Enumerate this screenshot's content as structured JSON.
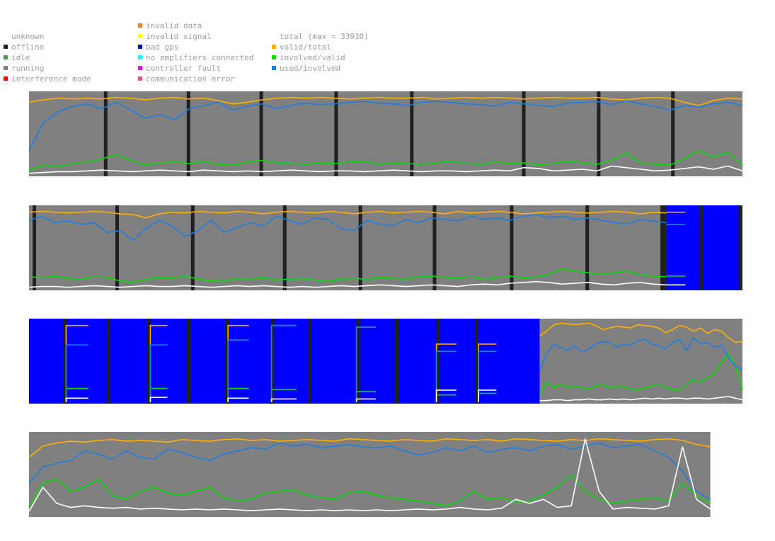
{
  "legend": {
    "col1": [
      {
        "label": "unknown",
        "color": ""
      },
      {
        "label": "offline",
        "color": "#202020"
      },
      {
        "label": "idle",
        "color": "#4a9a4a"
      },
      {
        "label": "running",
        "color": "#808080"
      },
      {
        "label": "interference mode",
        "color": "#ff0000"
      }
    ],
    "col2": [
      {
        "label": "invalid data",
        "color": "#ff7f00"
      },
      {
        "label": "invalid signal",
        "color": "#ffff00"
      },
      {
        "label": "bad gps",
        "color": "#0000ff"
      },
      {
        "label": "no amplifiers connected",
        "color": "#00ffff"
      },
      {
        "label": "controller fault",
        "color": "#ff00ff"
      },
      {
        "label": "communication error",
        "color": "#ff4f7f"
      }
    ],
    "col3": [
      {
        "label": "total (max = 33930)",
        "color": ""
      },
      {
        "label": "valid/total",
        "color": "#ffb000"
      },
      {
        "label": "involved/valid",
        "color": "#00e000"
      },
      {
        "label": "used/involved",
        "color": "#1e7de0"
      }
    ]
  },
  "chart_data": {
    "type": "line",
    "title": "",
    "total_max": 33930,
    "series": [
      {
        "name": "valid/total",
        "color": "#ffb000"
      },
      {
        "name": "involved/valid",
        "color": "#00e000"
      },
      {
        "name": "used/involved",
        "color": "#1e7de0"
      },
      {
        "name": "total (max = 33930)",
        "color": "#ffffff"
      }
    ],
    "state_colors": {
      "offline": "#202020",
      "running": "#808080",
      "bad gps": "#0000ff"
    },
    "rows": [
      {
        "timeline_fraction": 1.0,
        "states": [
          {
            "state": "running",
            "from": 0.0,
            "to": 1.0
          },
          {
            "state": "offline",
            "from": 0.105,
            "to": 0.11
          },
          {
            "state": "offline",
            "from": 0.221,
            "to": 0.226
          },
          {
            "state": "offline",
            "from": 0.323,
            "to": 0.328
          },
          {
            "state": "offline",
            "from": 0.428,
            "to": 0.433
          },
          {
            "state": "offline",
            "from": 0.534,
            "to": 0.539
          },
          {
            "state": "offline",
            "from": 0.691,
            "to": 0.696
          },
          {
            "state": "offline",
            "from": 0.796,
            "to": 0.801
          },
          {
            "state": "offline",
            "from": 0.9,
            "to": 0.905
          }
        ],
        "valid_total": [
          0.9,
          0.93,
          0.95,
          0.94,
          0.95,
          0.94,
          0.96,
          0.95,
          0.93,
          0.95,
          0.96,
          0.94,
          0.95,
          0.92,
          0.88,
          0.9,
          0.93,
          0.95,
          0.96,
          0.95,
          0.96,
          0.95,
          0.94,
          0.95,
          0.96,
          0.95,
          0.95,
          0.96,
          0.94,
          0.95,
          0.96,
          0.95,
          0.96,
          0.95,
          0.94,
          0.95,
          0.96,
          0.95,
          0.95,
          0.96,
          0.94,
          0.93,
          0.95,
          0.96,
          0.95,
          0.9,
          0.86,
          0.92,
          0.95,
          0.94
        ],
        "involved_valid": [
          0.05,
          0.12,
          0.1,
          0.14,
          0.16,
          0.2,
          0.25,
          0.18,
          0.12,
          0.15,
          0.16,
          0.14,
          0.17,
          0.13,
          0.12,
          0.16,
          0.18,
          0.15,
          0.14,
          0.13,
          0.15,
          0.14,
          0.16,
          0.17,
          0.13,
          0.15,
          0.14,
          0.13,
          0.15,
          0.17,
          0.14,
          0.13,
          0.16,
          0.14,
          0.15,
          0.12,
          0.14,
          0.17,
          0.15,
          0.13,
          0.18,
          0.27,
          0.15,
          0.13,
          0.12,
          0.2,
          0.3,
          0.22,
          0.28,
          0.12
        ],
        "used_involved": [
          0.3,
          0.65,
          0.78,
          0.85,
          0.88,
          0.82,
          0.9,
          0.8,
          0.7,
          0.75,
          0.68,
          0.82,
          0.86,
          0.9,
          0.8,
          0.85,
          0.88,
          0.82,
          0.86,
          0.89,
          0.87,
          0.88,
          0.9,
          0.91,
          0.89,
          0.88,
          0.86,
          0.9,
          0.91,
          0.9,
          0.88,
          0.87,
          0.85,
          0.9,
          0.88,
          0.86,
          0.85,
          0.89,
          0.9,
          0.91,
          0.87,
          0.92,
          0.88,
          0.85,
          0.8,
          0.86,
          0.84,
          0.88,
          0.9,
          0.86
        ],
        "total": [
          0.02,
          0.03,
          0.04,
          0.04,
          0.05,
          0.06,
          0.05,
          0.04,
          0.05,
          0.06,
          0.05,
          0.04,
          0.06,
          0.05,
          0.04,
          0.05,
          0.04,
          0.05,
          0.06,
          0.05,
          0.04,
          0.05,
          0.05,
          0.04,
          0.05,
          0.06,
          0.05,
          0.04,
          0.05,
          0.05,
          0.04,
          0.05,
          0.06,
          0.05,
          0.09,
          0.08,
          0.05,
          0.06,
          0.07,
          0.05,
          0.11,
          0.09,
          0.07,
          0.05,
          0.06,
          0.08,
          0.1,
          0.07,
          0.11,
          0.05
        ]
      },
      {
        "timeline_fraction": 1.0,
        "states": [
          {
            "state": "running",
            "from": 0.0,
            "to": 0.893
          },
          {
            "state": "bad gps",
            "from": 0.893,
            "to": 1.0
          },
          {
            "state": "offline",
            "from": 0.005,
            "to": 0.01
          },
          {
            "state": "offline",
            "from": 0.121,
            "to": 0.126
          },
          {
            "state": "offline",
            "from": 0.227,
            "to": 0.232
          },
          {
            "state": "offline",
            "from": 0.356,
            "to": 0.361
          },
          {
            "state": "offline",
            "from": 0.462,
            "to": 0.467
          },
          {
            "state": "offline",
            "from": 0.566,
            "to": 0.571
          },
          {
            "state": "offline",
            "from": 0.674,
            "to": 0.679
          },
          {
            "state": "offline",
            "from": 0.78,
            "to": 0.785
          },
          {
            "state": "offline",
            "from": 0.885,
            "to": 0.893
          },
          {
            "state": "offline",
            "from": 0.94,
            "to": 0.945
          },
          {
            "state": "offline",
            "from": 0.995,
            "to": 1.0
          }
        ],
        "valid_total": [
          0.95,
          0.96,
          0.95,
          0.94,
          0.95,
          0.96,
          0.95,
          0.93,
          0.92,
          0.88,
          0.93,
          0.95,
          0.94,
          0.96,
          0.95,
          0.94,
          0.96,
          0.95,
          0.93,
          0.95,
          0.96,
          0.95,
          0.94,
          0.96,
          0.95,
          0.93,
          0.95,
          0.96,
          0.94,
          0.95,
          0.96,
          0.95,
          0.93,
          0.96,
          0.94,
          0.95,
          0.96,
          0.95,
          0.93,
          0.94,
          0.95,
          0.96,
          0.95,
          0.94,
          0.95,
          0.96,
          0.95,
          0.93,
          0.95,
          0.94
        ],
        "involved_valid": [
          0.15,
          0.14,
          0.16,
          0.13,
          0.12,
          0.15,
          0.14,
          0.1,
          0.08,
          0.12,
          0.14,
          0.13,
          0.16,
          0.12,
          0.1,
          0.09,
          0.13,
          0.12,
          0.14,
          0.11,
          0.12,
          0.13,
          0.11,
          0.09,
          0.12,
          0.13,
          0.12,
          0.14,
          0.13,
          0.12,
          0.15,
          0.16,
          0.14,
          0.13,
          0.15,
          0.12,
          0.14,
          0.16,
          0.13,
          0.15,
          0.18,
          0.25,
          0.22,
          0.2,
          0.18,
          0.2,
          0.22,
          0.18,
          0.16,
          0.15
        ],
        "used_involved": [
          0.85,
          0.9,
          0.82,
          0.84,
          0.8,
          0.82,
          0.7,
          0.72,
          0.6,
          0.75,
          0.85,
          0.78,
          0.65,
          0.72,
          0.85,
          0.7,
          0.76,
          0.82,
          0.78,
          0.9,
          0.85,
          0.8,
          0.88,
          0.86,
          0.75,
          0.72,
          0.85,
          0.8,
          0.78,
          0.86,
          0.82,
          0.88,
          0.86,
          0.84,
          0.9,
          0.86,
          0.88,
          0.85,
          0.9,
          0.92,
          0.88,
          0.9,
          0.86,
          0.88,
          0.85,
          0.82,
          0.8,
          0.86,
          0.84,
          0.82
        ],
        "total": [
          0.02,
          0.03,
          0.03,
          0.02,
          0.03,
          0.04,
          0.03,
          0.02,
          0.03,
          0.04,
          0.03,
          0.03,
          0.04,
          0.03,
          0.02,
          0.03,
          0.04,
          0.03,
          0.04,
          0.03,
          0.02,
          0.03,
          0.02,
          0.03,
          0.04,
          0.03,
          0.04,
          0.05,
          0.04,
          0.03,
          0.04,
          0.05,
          0.04,
          0.03,
          0.05,
          0.06,
          0.05,
          0.07,
          0.08,
          0.09,
          0.08,
          0.06,
          0.07,
          0.08,
          0.06,
          0.05,
          0.07,
          0.08,
          0.06,
          0.05
        ]
      },
      {
        "timeline_fraction": 1.0,
        "states": [
          {
            "state": "bad gps",
            "from": 0.0,
            "to": 0.716
          },
          {
            "state": "running",
            "from": 0.716,
            "to": 1.0
          },
          {
            "state": "offline",
            "from": 0.048,
            "to": 0.053
          },
          {
            "state": "offline",
            "from": 0.109,
            "to": 0.114
          },
          {
            "state": "offline",
            "from": 0.165,
            "to": 0.17
          },
          {
            "state": "offline",
            "from": 0.221,
            "to": 0.226
          },
          {
            "state": "offline",
            "from": 0.275,
            "to": 0.28
          },
          {
            "state": "offline",
            "from": 0.339,
            "to": 0.344
          },
          {
            "state": "offline",
            "from": 0.391,
            "to": 0.396
          },
          {
            "state": "offline",
            "from": 0.459,
            "to": 0.464
          },
          {
            "state": "offline",
            "from": 0.513,
            "to": 0.518
          },
          {
            "state": "offline",
            "from": 0.571,
            "to": 0.576
          },
          {
            "state": "offline",
            "from": 0.625,
            "to": 0.63
          }
        ],
        "bursts": [
          {
            "from": 0.052,
            "to": 0.083,
            "valid_total": 0.95,
            "used_involved": 0.71,
            "involved_valid": 0.17,
            "total": 0.05
          },
          {
            "from": 0.17,
            "to": 0.194,
            "valid_total": 0.95,
            "used_involved": 0.71,
            "involved_valid": 0.17,
            "total": 0.06
          },
          {
            "from": 0.279,
            "to": 0.308,
            "valid_total": 0.95,
            "used_involved": 0.77,
            "involved_valid": 0.17,
            "total": 0.05
          },
          {
            "from": 0.34,
            "to": 0.375,
            "valid_total": 0.95,
            "used_involved": 0.95,
            "involved_valid": 0.16,
            "total": 0.04
          },
          {
            "from": 0.459,
            "to": 0.486,
            "valid_total": 0.93,
            "used_involved": 0.93,
            "involved_valid": 0.13,
            "total": 0.04
          },
          {
            "from": 0.571,
            "to": 0.599,
            "valid_total": 0.72,
            "used_involved": 0.63,
            "involved_valid": 0.09,
            "total": 0.15
          },
          {
            "from": 0.63,
            "to": 0.655,
            "valid_total": 0.72,
            "used_involved": 0.63,
            "involved_valid": 0.11,
            "total": 0.15
          }
        ],
        "valid_total": [
          0.82,
          0.88,
          0.96,
          0.98,
          0.97,
          0.96,
          0.97,
          0.98,
          0.95,
          0.9,
          0.92,
          0.94,
          0.93,
          0.92,
          0.96,
          0.95,
          0.94,
          0.92,
          0.86,
          0.9,
          0.95,
          0.93,
          0.88,
          0.92,
          0.85,
          0.9,
          0.88,
          0.8,
          0.74,
          0.75
        ],
        "involved_valid": [
          0.1,
          0.25,
          0.18,
          0.22,
          0.18,
          0.2,
          0.18,
          0.16,
          0.2,
          0.22,
          0.18,
          0.2,
          0.19,
          0.17,
          0.15,
          0.18,
          0.2,
          0.22,
          0.18,
          0.16,
          0.15,
          0.22,
          0.28,
          0.25,
          0.3,
          0.35,
          0.5,
          0.6,
          0.45,
          0.15
        ],
        "used_involved": [
          0.4,
          0.6,
          0.72,
          0.68,
          0.64,
          0.7,
          0.62,
          0.66,
          0.72,
          0.75,
          0.74,
          0.68,
          0.72,
          0.7,
          0.76,
          0.78,
          0.72,
          0.7,
          0.66,
          0.74,
          0.78,
          0.64,
          0.8,
          0.72,
          0.74,
          0.68,
          0.7,
          0.55,
          0.45,
          0.4
        ],
        "total": [
          0.02,
          0.02,
          0.03,
          0.03,
          0.02,
          0.03,
          0.03,
          0.04,
          0.03,
          0.03,
          0.04,
          0.03,
          0.04,
          0.03,
          0.04,
          0.05,
          0.04,
          0.05,
          0.04,
          0.05,
          0.05,
          0.04,
          0.05,
          0.05,
          0.04,
          0.05,
          0.06,
          0.07,
          0.05,
          0.03
        ]
      },
      {
        "timeline_fraction": 0.955,
        "states": [
          {
            "state": "running",
            "from": 0.0,
            "to": 1.0
          }
        ],
        "valid_total": [
          0.72,
          0.86,
          0.9,
          0.92,
          0.91,
          0.93,
          0.94,
          0.92,
          0.93,
          0.92,
          0.91,
          0.94,
          0.93,
          0.92,
          0.94,
          0.95,
          0.93,
          0.94,
          0.92,
          0.93,
          0.94,
          0.93,
          0.92,
          0.95,
          0.94,
          0.93,
          0.92,
          0.94,
          0.93,
          0.92,
          0.95,
          0.94,
          0.93,
          0.94,
          0.92,
          0.95,
          0.94,
          0.93,
          0.92,
          0.94,
          0.93,
          0.95,
          0.94,
          0.93,
          0.92,
          0.94,
          0.95,
          0.93,
          0.88,
          0.85
        ],
        "involved_valid": [
          0.1,
          0.4,
          0.45,
          0.3,
          0.35,
          0.45,
          0.25,
          0.2,
          0.3,
          0.35,
          0.28,
          0.25,
          0.3,
          0.35,
          0.22,
          0.18,
          0.2,
          0.28,
          0.3,
          0.32,
          0.25,
          0.22,
          0.2,
          0.28,
          0.3,
          0.25,
          0.22,
          0.2,
          0.18,
          0.15,
          0.12,
          0.18,
          0.3,
          0.2,
          0.22,
          0.16,
          0.18,
          0.25,
          0.35,
          0.5,
          0.3,
          0.2,
          0.15,
          0.18,
          0.2,
          0.22,
          0.18,
          0.4,
          0.25,
          0.15
        ],
        "used_involved": [
          0.4,
          0.6,
          0.65,
          0.68,
          0.8,
          0.76,
          0.7,
          0.8,
          0.72,
          0.7,
          0.82,
          0.78,
          0.72,
          0.68,
          0.76,
          0.8,
          0.84,
          0.82,
          0.9,
          0.86,
          0.88,
          0.84,
          0.86,
          0.88,
          0.85,
          0.84,
          0.86,
          0.8,
          0.75,
          0.78,
          0.84,
          0.8,
          0.86,
          0.78,
          0.82,
          0.84,
          0.8,
          0.86,
          0.88,
          0.82,
          0.86,
          0.9,
          0.84,
          0.86,
          0.88,
          0.8,
          0.72,
          0.55,
          0.3,
          0.2
        ],
        "total": [
          0.05,
          0.35,
          0.15,
          0.1,
          0.12,
          0.1,
          0.09,
          0.1,
          0.08,
          0.09,
          0.08,
          0.07,
          0.08,
          0.07,
          0.08,
          0.07,
          0.06,
          0.07,
          0.08,
          0.07,
          0.06,
          0.07,
          0.06,
          0.07,
          0.06,
          0.07,
          0.06,
          0.07,
          0.08,
          0.07,
          0.08,
          0.1,
          0.08,
          0.07,
          0.09,
          0.2,
          0.15,
          0.2,
          0.1,
          0.12,
          0.95,
          0.3,
          0.08,
          0.1,
          0.09,
          0.08,
          0.12,
          0.85,
          0.2,
          0.08
        ]
      }
    ]
  }
}
